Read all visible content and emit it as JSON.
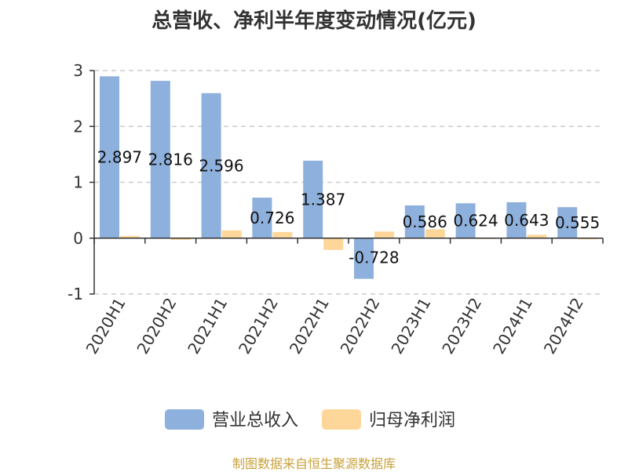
{
  "chart_data": {
    "type": "bar",
    "title": "总营收、净利半年度变动情况(亿元)",
    "categories": [
      "2020H1",
      "2020H2",
      "2021H1",
      "2021H2",
      "2022H1",
      "2022H2",
      "2023H1",
      "2023H2",
      "2024H1",
      "2024H2"
    ],
    "series": [
      {
        "name": "营业总收入",
        "color": "#8eb0dc",
        "values": [
          2.897,
          2.816,
          2.596,
          0.726,
          1.387,
          -0.728,
          0.586,
          0.624,
          0.643,
          0.555
        ],
        "labels": [
          "2.897",
          "2.816",
          "2.596",
          "0.726",
          "1.387",
          "-0.728",
          "0.586",
          "0.624",
          "0.643",
          "0.555"
        ]
      },
      {
        "name": "归母净利润",
        "color": "#fdd79a",
        "values": [
          0.04,
          -0.03,
          0.14,
          0.11,
          -0.21,
          0.12,
          0.16,
          0.0,
          0.06,
          -0.02
        ]
      }
    ],
    "yticks": [
      "3",
      "2",
      "1",
      "0",
      "-1"
    ],
    "ylim": [
      -1,
      3
    ],
    "grid": true,
    "legend_position": "bottom"
  },
  "source": "制图数据来自恒生聚源数据库"
}
